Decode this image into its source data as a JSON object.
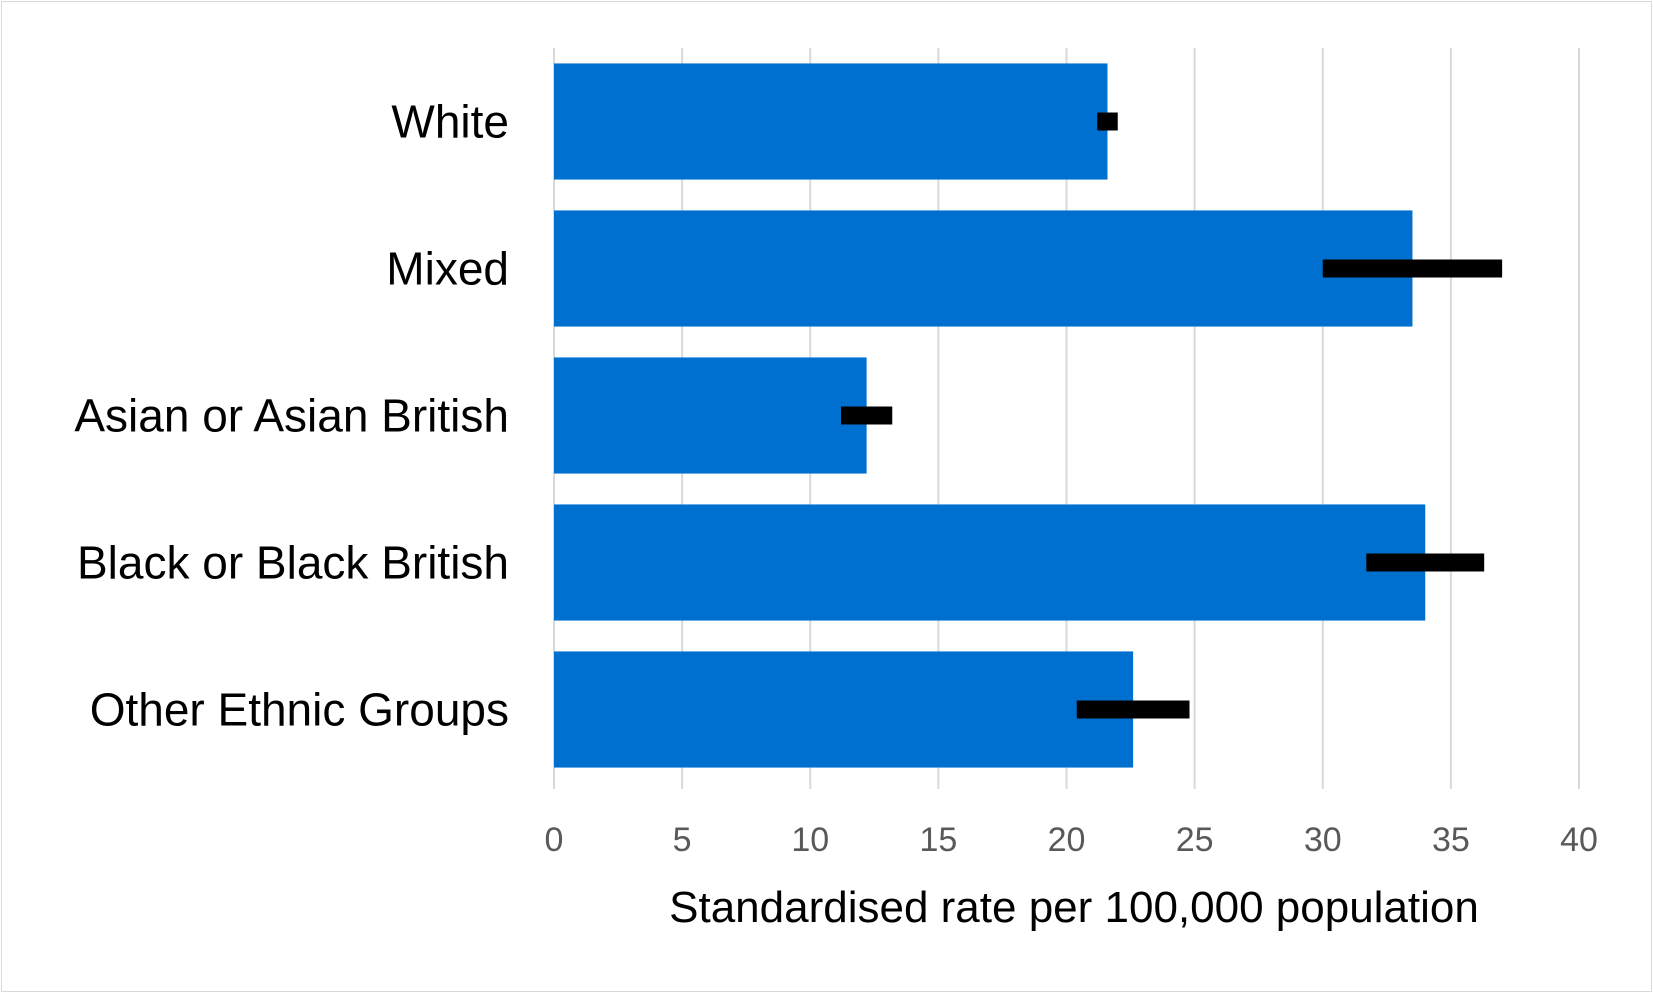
{
  "chart_data": {
    "type": "bar",
    "orientation": "horizontal",
    "categories": [
      "White",
      "Mixed",
      "Asian or Asian British",
      "Black or Black British",
      "Other Ethnic Groups"
    ],
    "series": [
      {
        "values": [
          21.6,
          33.5,
          12.2,
          34.0,
          22.6
        ],
        "ci_lower": [
          21.2,
          30.0,
          11.2,
          31.7,
          20.4
        ],
        "ci_upper": [
          22.0,
          37.0,
          13.2,
          36.3,
          24.8
        ]
      }
    ],
    "xlabel": "Standardised rate per 100,000 population",
    "xlim": [
      0,
      40
    ],
    "xticks": [
      0,
      5,
      10,
      15,
      20,
      25,
      30,
      35,
      40
    ],
    "grid": "vertical",
    "legend": "none",
    "colors": {
      "bar": "#0070d0",
      "error_bar": "#000000",
      "grid": "#d9d9d9",
      "tick_text": "#595959"
    }
  }
}
